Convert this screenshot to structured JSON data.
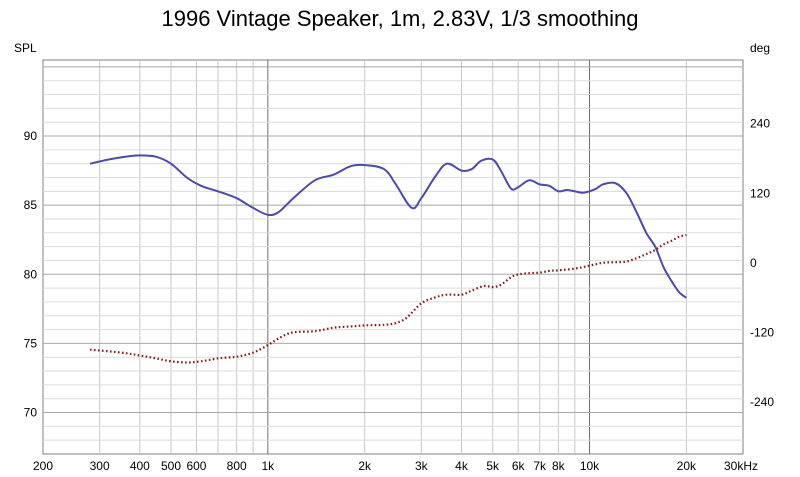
{
  "chart_data": {
    "type": "line",
    "title": "1996 Vintage Speaker, 1m, 2.83V, 1/3 smoothing",
    "ylabel_left": "SPL",
    "ylabel_right": "deg",
    "x_scale": "log",
    "xlim": [
      200,
      30000
    ],
    "ylim_left": [
      67,
      95.5
    ],
    "ylim_right": [
      -330,
      350
    ],
    "grid": true,
    "x_ticks": [
      200,
      300,
      400,
      500,
      600,
      800,
      1000,
      2000,
      3000,
      4000,
      5000,
      6000,
      7000,
      8000,
      10000,
      20000,
      30000
    ],
    "x_tick_labels": [
      "200",
      "300",
      "400",
      "500",
      "600",
      "800",
      "1k",
      "2k",
      "3k",
      "4k",
      "5k",
      "6k",
      "7k",
      "8k",
      "10k",
      "20k",
      "30kHz"
    ],
    "y_ticks_left": [
      70,
      75,
      80,
      85,
      90
    ],
    "y_ticks_right": [
      -240,
      -120,
      0,
      120,
      240
    ],
    "series": [
      {
        "axis": "left",
        "style": "solid",
        "color": "#4a4ab0",
        "x": [
          280,
          320,
          360,
          400,
          450,
          500,
          560,
          620,
          700,
          800,
          900,
          1000,
          1080,
          1200,
          1400,
          1600,
          1800,
          2000,
          2300,
          2500,
          2800,
          3000,
          3300,
          3600,
          4000,
          4300,
          4600,
          5000,
          5300,
          5700,
          6000,
          6500,
          7000,
          7500,
          8000,
          8500,
          9000,
          9500,
          10000,
          10500,
          11000,
          12000,
          13000,
          14000,
          15000,
          16000,
          17000,
          18000,
          19000,
          20000
        ],
        "y": [
          88.0,
          88.3,
          88.5,
          88.6,
          88.5,
          88.0,
          87.0,
          86.4,
          86.0,
          85.5,
          84.8,
          84.3,
          84.5,
          85.5,
          86.8,
          87.2,
          87.8,
          87.9,
          87.6,
          86.5,
          84.8,
          85.5,
          87.0,
          88.0,
          87.5,
          87.6,
          88.2,
          88.3,
          87.5,
          86.2,
          86.3,
          86.8,
          86.5,
          86.4,
          86.0,
          86.1,
          86.0,
          85.9,
          86.0,
          86.2,
          86.5,
          86.6,
          85.9,
          84.5,
          83.0,
          82.0,
          80.5,
          79.5,
          78.7,
          78.3
        ]
      },
      {
        "axis": "right",
        "style": "dotted",
        "color": "#8a1a1a",
        "x": [
          280,
          350,
          400,
          450,
          500,
          560,
          620,
          700,
          800,
          900,
          1000,
          1100,
          1200,
          1400,
          1600,
          1800,
          2000,
          2300,
          2500,
          2700,
          3000,
          3300,
          3600,
          4000,
          4300,
          4700,
          5000,
          5300,
          5700,
          6000,
          6500,
          7000,
          7500,
          8000,
          9000,
          10000,
          11000,
          12000,
          13000,
          14000,
          15000,
          16000,
          17000,
          18000,
          19000,
          20000
        ],
        "y": [
          -150,
          -155,
          -160,
          -165,
          -170,
          -172,
          -170,
          -165,
          -162,
          -155,
          -142,
          -128,
          -120,
          -118,
          -112,
          -110,
          -108,
          -107,
          -104,
          -95,
          -70,
          -60,
          -55,
          -55,
          -48,
          -40,
          -42,
          -38,
          -25,
          -20,
          -18,
          -17,
          -14,
          -13,
          -10,
          -5,
          0,
          1,
          2,
          8,
          15,
          22,
          32,
          38,
          45,
          48
        ]
      }
    ]
  }
}
